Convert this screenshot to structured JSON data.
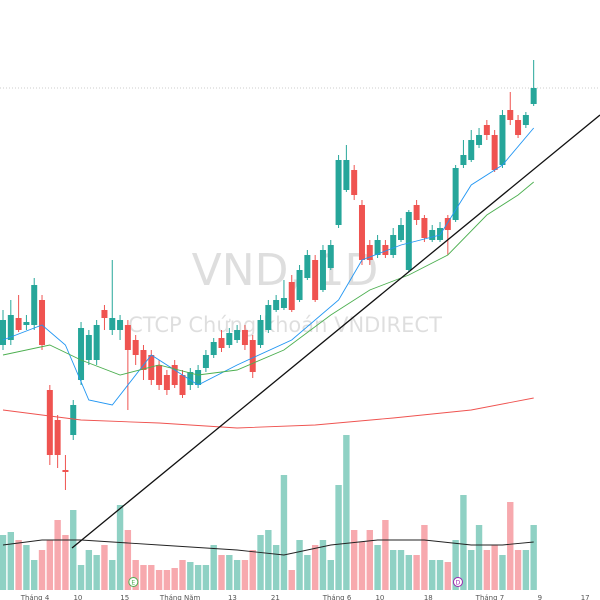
{
  "chart_data": {
    "type": "candlestick",
    "title": "VND, 1D",
    "subtitle": "CTCP Chứng khoán VNDIRECT",
    "xlim": [
      -0.385,
      76.5
    ],
    "ylim": [
      0,
      600
    ],
    "vlim": [
      0,
      160
    ],
    "xticks": [
      {
        "value": 4.1,
        "label": "Tháng 4"
      },
      {
        "value": 9.6,
        "label": "10"
      },
      {
        "value": 15.6,
        "label": "15"
      },
      {
        "value": 22.7,
        "label": "Tháng Năm"
      },
      {
        "value": 29.4,
        "label": "13"
      },
      {
        "value": 34.9,
        "label": "21"
      },
      {
        "value": 42.8,
        "label": "Tháng 6"
      },
      {
        "value": 48.3,
        "label": "10"
      },
      {
        "value": 54.5,
        "label": "18"
      },
      {
        "value": 62.4,
        "label": "Tháng 7"
      },
      {
        "value": 68.8,
        "label": "9"
      },
      {
        "value": 74.6,
        "label": "17"
      }
    ],
    "events": [
      {
        "label": "E",
        "x": 16.7
      },
      {
        "label": "D",
        "x": 58.3
      }
    ],
    "up_color": "#26a69a",
    "down_color": "#ef5350",
    "up_volume_color": "#8fd1c4",
    "down_volume_color": "#f7a9ae",
    "x": [
      0,
      1,
      2,
      3,
      4,
      5,
      6,
      7,
      8,
      9,
      10,
      11,
      12,
      13,
      14,
      15,
      16,
      17,
      18,
      19,
      20,
      21,
      22,
      23,
      24,
      25,
      26,
      27,
      28,
      29,
      30,
      31,
      32,
      33,
      34,
      35,
      36,
      37,
      38,
      39,
      40,
      41,
      42,
      43,
      44,
      45,
      46,
      47,
      48,
      49,
      50,
      51,
      52,
      53,
      54,
      55,
      56,
      57,
      58,
      59,
      60,
      61,
      62,
      63,
      64,
      65,
      66,
      67,
      68
    ],
    "open": [
      255,
      260,
      282,
      275,
      275,
      300,
      210,
      180,
      130,
      165,
      220,
      240,
      240,
      290,
      270,
      270,
      275,
      260,
      250,
      245,
      235,
      225,
      235,
      225,
      215,
      215,
      232,
      245,
      262,
      255,
      260,
      270,
      260,
      255,
      270,
      290,
      292,
      318,
      300,
      322,
      340,
      310,
      332,
      375,
      410,
      430,
      395,
      355,
      345,
      355,
      345,
      360,
      330,
      395,
      382,
      360,
      360,
      382,
      380,
      435,
      440,
      455,
      475,
      465,
      435,
      490,
      480,
      475,
      496
    ],
    "high": [
      290,
      300,
      305,
      285,
      322,
      305,
      215,
      185,
      145,
      200,
      278,
      270,
      280,
      295,
      340,
      285,
      280,
      265,
      255,
      250,
      240,
      230,
      240,
      230,
      232,
      235,
      250,
      262,
      270,
      272,
      275,
      275,
      265,
      285,
      300,
      305,
      320,
      325,
      335,
      350,
      345,
      355,
      360,
      445,
      455,
      435,
      400,
      360,
      365,
      360,
      372,
      382,
      390,
      400,
      385,
      375,
      378,
      385,
      435,
      460,
      470,
      472,
      480,
      470,
      490,
      508,
      485,
      488,
      540
    ],
    "low": [
      250,
      255,
      268,
      270,
      270,
      250,
      135,
      132,
      110,
      160,
      215,
      235,
      235,
      270,
      265,
      260,
      190,
      235,
      220,
      215,
      210,
      205,
      212,
      202,
      210,
      212,
      228,
      242,
      248,
      252,
      257,
      250,
      222,
      252,
      267,
      288,
      290,
      288,
      298,
      320,
      298,
      308,
      330,
      372,
      408,
      400,
      335,
      335,
      342,
      342,
      342,
      358,
      328,
      375,
      358,
      358,
      358,
      345,
      378,
      432,
      438,
      452,
      460,
      428,
      432,
      475,
      462,
      472,
      494
    ],
    "close": [
      280,
      285,
      270,
      278,
      315,
      255,
      145,
      145,
      128,
      195,
      272,
      265,
      275,
      282,
      282,
      280,
      250,
      245,
      230,
      220,
      215,
      210,
      215,
      205,
      228,
      230,
      245,
      258,
      252,
      267,
      270,
      255,
      228,
      280,
      295,
      300,
      302,
      290,
      330,
      345,
      300,
      350,
      355,
      440,
      440,
      405,
      340,
      340,
      360,
      345,
      365,
      375,
      388,
      380,
      362,
      370,
      372,
      370,
      432,
      445,
      460,
      465,
      465,
      430,
      485,
      480,
      465,
      485,
      512
    ],
    "volume": [
      55,
      58,
      50,
      45,
      30,
      40,
      50,
      70,
      55,
      80,
      25,
      40,
      35,
      45,
      30,
      85,
      60,
      30,
      25,
      25,
      20,
      20,
      22,
      30,
      28,
      25,
      25,
      45,
      35,
      35,
      30,
      30,
      40,
      55,
      60,
      45,
      115,
      20,
      50,
      35,
      45,
      50,
      30,
      105,
      155,
      60,
      48,
      60,
      45,
      70,
      40,
      40,
      35,
      35,
      65,
      30,
      30,
      28,
      50,
      95,
      40,
      65,
      40,
      45,
      35,
      88,
      40,
      40,
      65
    ],
    "series": [
      {
        "color": "#2196f3",
        "axis": "price",
        "x": [
          0,
          5,
          8,
          11,
          14,
          19,
          25,
          30,
          37,
          43,
          46,
          51,
          56,
          60,
          64,
          68
        ],
        "values": [
          260,
          275,
          255,
          200,
          195,
          245,
          215,
          235,
          260,
          300,
          340,
          355,
          365,
          415,
          435,
          472
        ]
      },
      {
        "color": "#4caf50",
        "axis": "price",
        "x": [
          0,
          6,
          10,
          15,
          20,
          25,
          30,
          36,
          42,
          47,
          52,
          57,
          62,
          66,
          68
        ],
        "values": [
          245,
          255,
          240,
          225,
          235,
          225,
          230,
          250,
          285,
          310,
          325,
          345,
          385,
          405,
          418
        ]
      },
      {
        "color": "#ef5350",
        "axis": "price",
        "x": [
          0,
          10,
          20,
          30,
          40,
          50,
          60,
          68
        ],
        "values": [
          190,
          180,
          177,
          172,
          175,
          182,
          190,
          202
        ]
      },
      {
        "color": "#222222",
        "axis": "volume",
        "x": [
          0,
          5,
          10,
          20,
          30,
          36,
          42,
          48,
          54,
          60,
          64,
          68
        ],
        "values": [
          45,
          50,
          50,
          45,
          40,
          35,
          45,
          50,
          50,
          45,
          45,
          48
        ]
      }
    ]
  }
}
